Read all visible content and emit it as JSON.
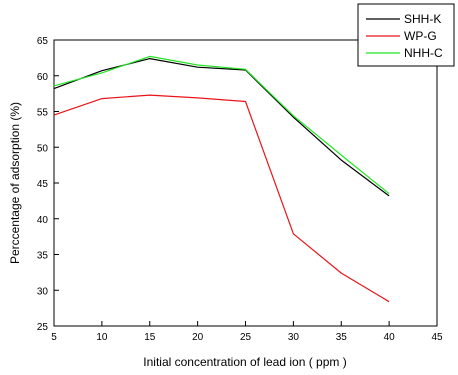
{
  "chart_data": {
    "type": "line",
    "title": "",
    "xlabel": "Initial concentration of lead ion ( ppm )",
    "ylabel": "Perccentage of adsorption (%)",
    "xlim": [
      5,
      45
    ],
    "ylim": [
      25,
      65
    ],
    "xticks": [
      5,
      10,
      15,
      20,
      25,
      30,
      35,
      40,
      45
    ],
    "yticks": [
      25,
      30,
      35,
      40,
      45,
      50,
      55,
      60,
      65
    ],
    "grid": false,
    "legend_position": "top-right",
    "x": [
      5,
      10,
      15,
      20,
      25,
      30,
      35,
      40
    ],
    "series": [
      {
        "name": "SHH-K",
        "color": "#000000",
        "values": [
          58.2,
          60.7,
          62.4,
          61.2,
          60.8,
          54.2,
          48.2,
          43.2
        ]
      },
      {
        "name": "WP-G",
        "color": "#e8141a",
        "values": [
          54.5,
          56.8,
          57.3,
          56.9,
          56.4,
          37.9,
          32.4,
          28.4
        ]
      },
      {
        "name": "NHH-C",
        "color": "#22e822",
        "values": [
          58.6,
          60.4,
          62.7,
          61.5,
          60.9,
          54.4,
          48.9,
          43.5
        ]
      }
    ]
  }
}
